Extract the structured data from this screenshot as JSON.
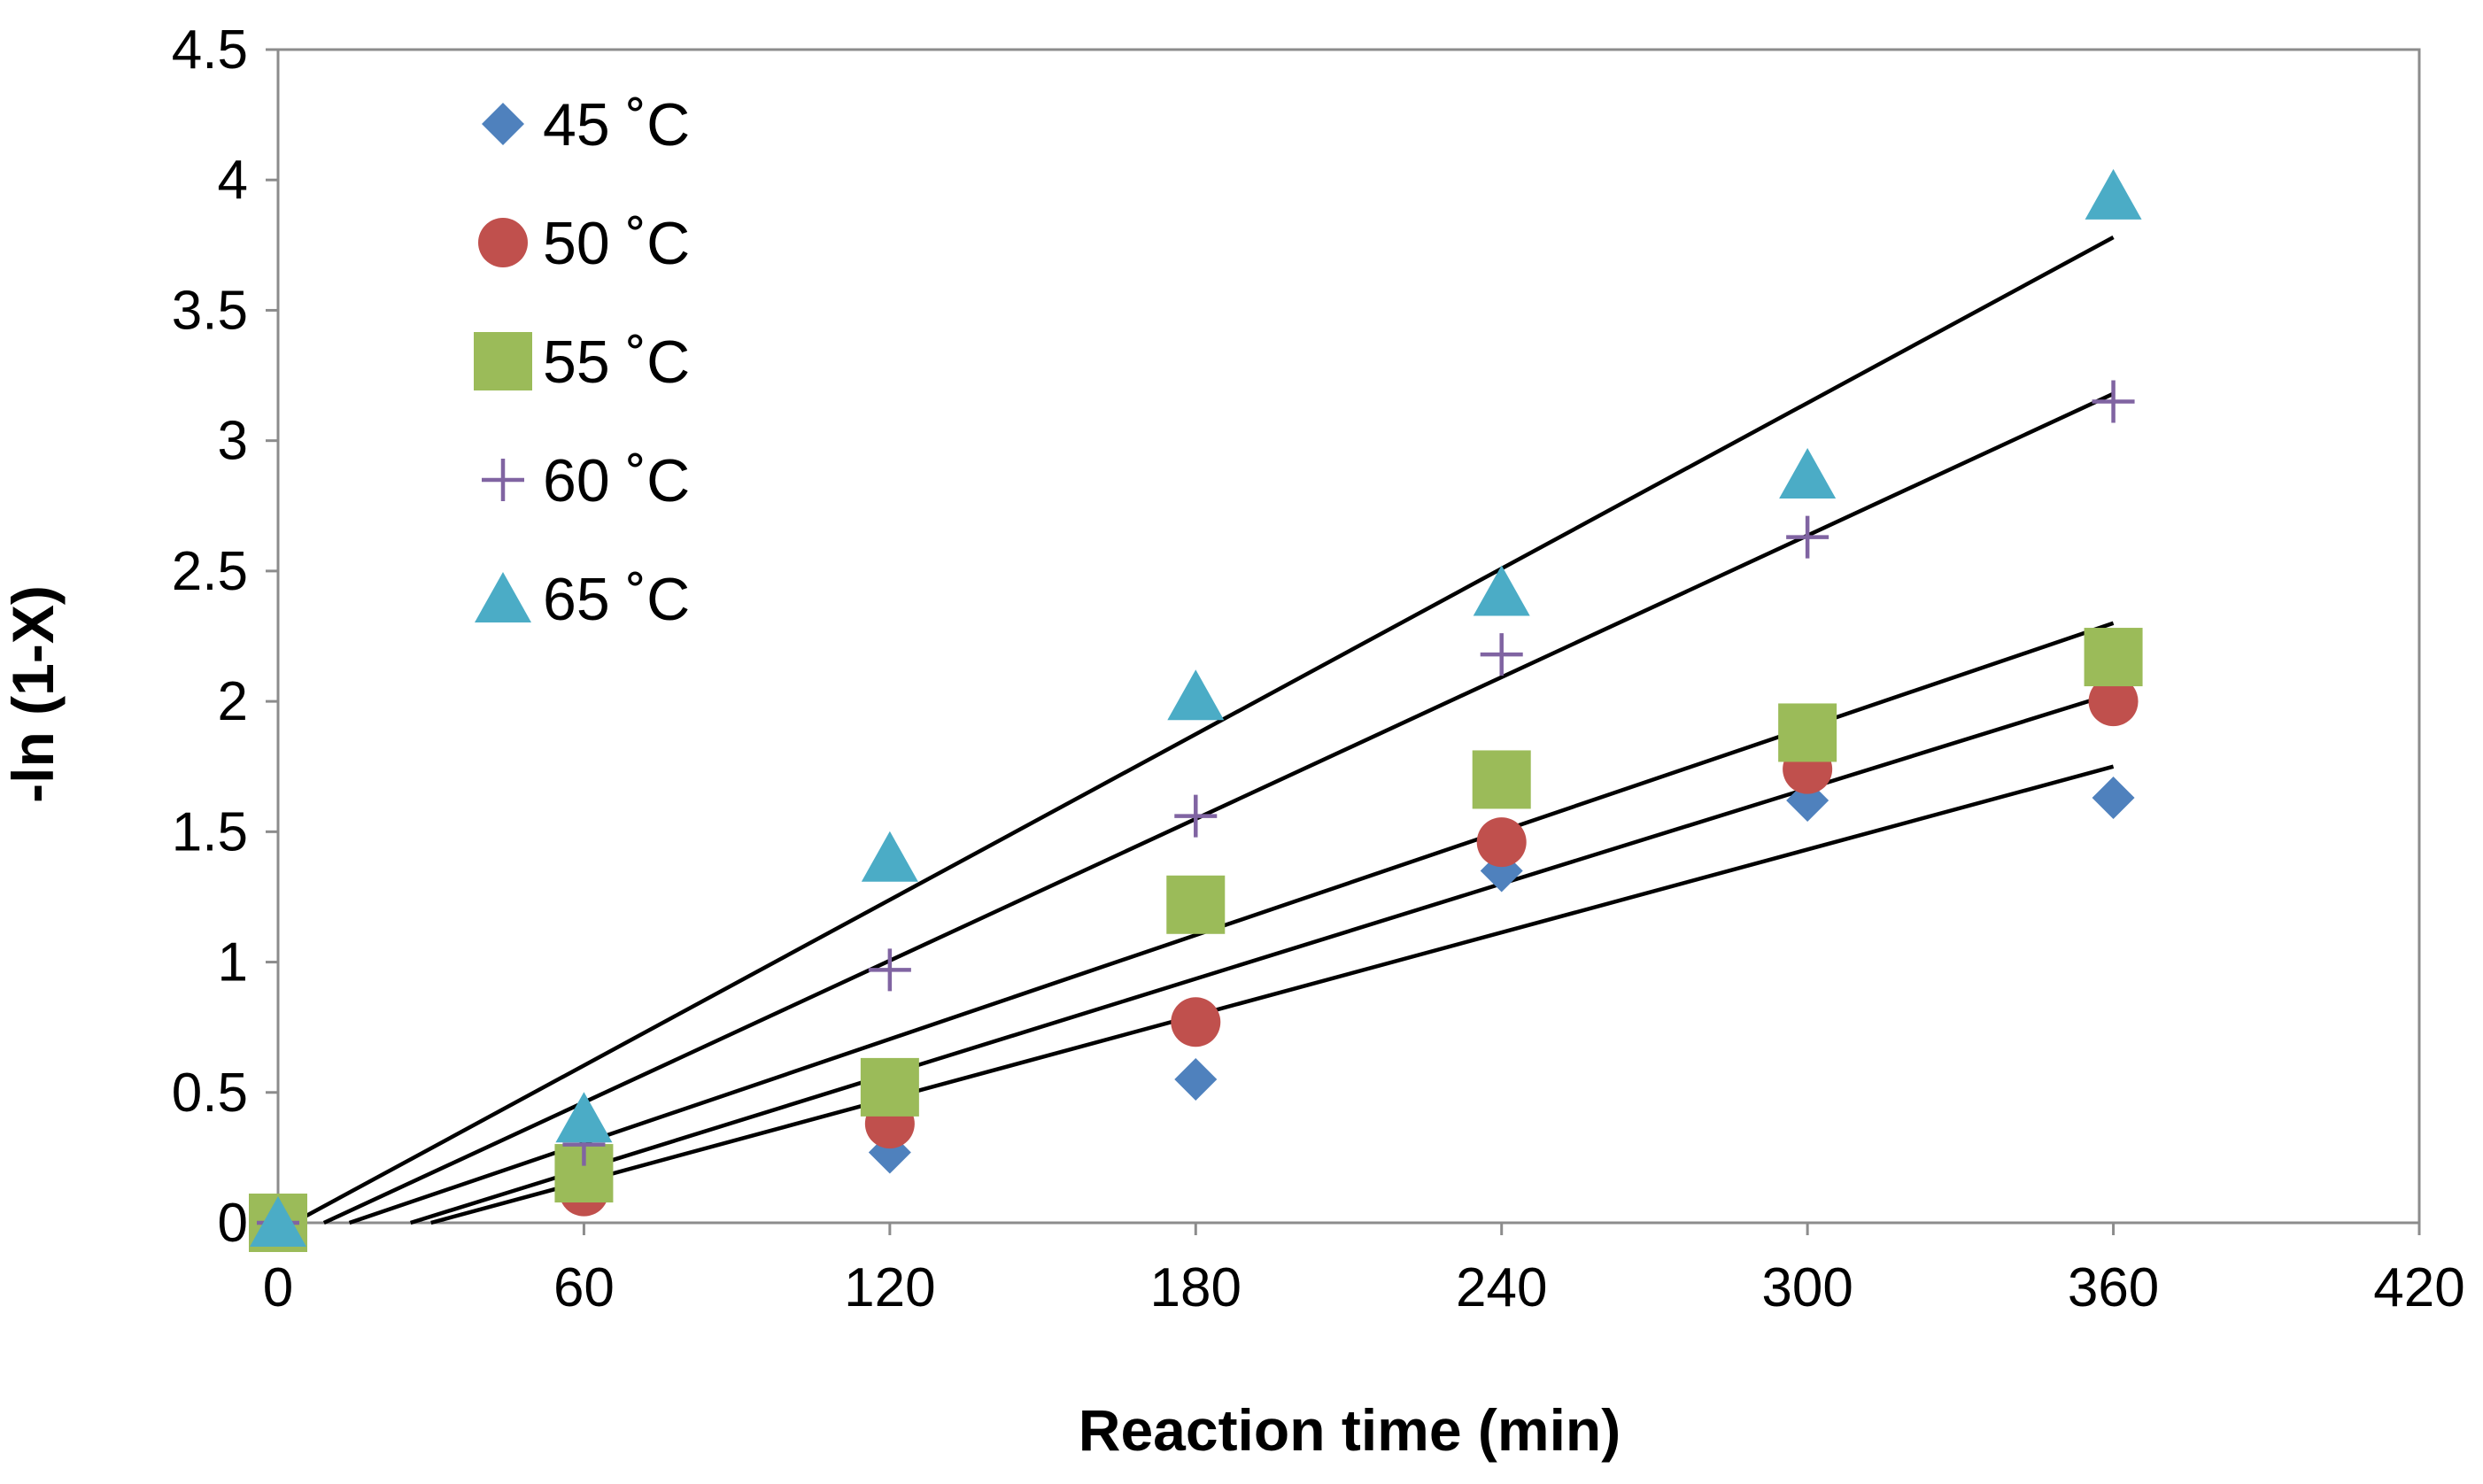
{
  "chart_data": {
    "type": "scatter",
    "title": "",
    "xlabel": "Reaction time (min)",
    "ylabel": "-ln (1-X)",
    "xlim": [
      0,
      420
    ],
    "ylim": [
      0,
      4.5
    ],
    "xticks": [
      0,
      60,
      120,
      180,
      240,
      300,
      360,
      420
    ],
    "yticks": [
      0,
      0.5,
      1,
      1.5,
      2,
      2.5,
      3,
      3.5,
      4,
      4.5
    ],
    "ytick_labels": [
      "0",
      "0.5",
      "1",
      "1.5",
      "2",
      "2.5",
      "3",
      "3.5",
      "4",
      "4.5"
    ],
    "grid": false,
    "legend_position": "top-left",
    "series": [
      {
        "name": "45 ˚C",
        "marker": "diamond",
        "color": "#4F81BD",
        "x": [
          0,
          60,
          120,
          180,
          240,
          300,
          360
        ],
        "y": [
          0,
          0.12,
          0.27,
          0.55,
          1.35,
          1.62,
          1.63
        ],
        "trendline": {
          "x": [
            30,
            360
          ],
          "y": [
            0,
            1.75
          ]
        }
      },
      {
        "name": "50 ˚C",
        "marker": "circle",
        "color": "#C0504D",
        "x": [
          0,
          60,
          120,
          180,
          240,
          300,
          360
        ],
        "y": [
          0,
          0.12,
          0.38,
          0.77,
          1.46,
          1.74,
          2.0
        ],
        "trendline": {
          "x": [
            26,
            360
          ],
          "y": [
            0,
            2.03
          ]
        }
      },
      {
        "name": "55 ˚C",
        "marker": "square",
        "color": "#9BBB59",
        "x": [
          0,
          60,
          120,
          180,
          240,
          300,
          360
        ],
        "y": [
          0,
          0.19,
          0.52,
          1.22,
          1.7,
          1.88,
          2.17
        ],
        "trendline": {
          "x": [
            14,
            360
          ],
          "y": [
            0,
            2.3
          ]
        }
      },
      {
        "name": "60 ˚C",
        "marker": "plus",
        "color": "#8064A2",
        "x": [
          0,
          60,
          120,
          180,
          240,
          300,
          360
        ],
        "y": [
          0,
          0.3,
          0.97,
          1.56,
          2.18,
          2.63,
          3.15
        ],
        "trendline": {
          "x": [
            9,
            360
          ],
          "y": [
            0,
            3.18
          ]
        }
      },
      {
        "name": "65 ˚C",
        "marker": "triangle",
        "color": "#4BACC6",
        "x": [
          0,
          60,
          120,
          180,
          240,
          300,
          360
        ],
        "y": [
          0,
          0.4,
          1.4,
          2.02,
          2.42,
          2.87,
          3.94
        ],
        "trendline": {
          "x": [
            3,
            360
          ],
          "y": [
            0,
            3.78
          ]
        }
      }
    ]
  }
}
